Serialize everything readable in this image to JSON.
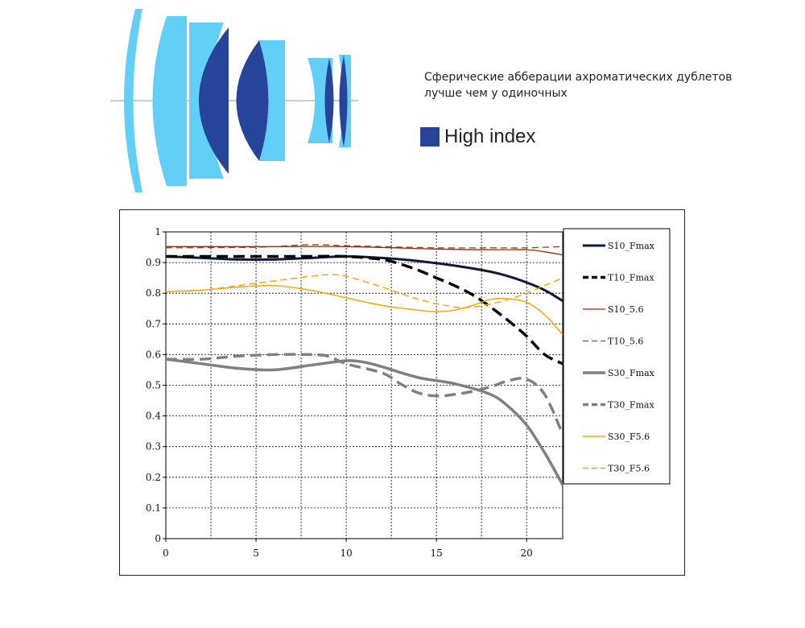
{
  "caption": {
    "line1": "Сферические абберации ахроматических дублетов",
    "line2": "лучше чем у одиночных"
  },
  "high_index_legend": {
    "label": "High index",
    "color": "#26449a"
  },
  "lens_colors": {
    "low_index": "#62d0f6",
    "high_index": "#26449a",
    "axis": "#a0b0c0"
  },
  "chart_data": {
    "type": "line",
    "xlim": [
      0,
      22
    ],
    "ylim": [
      0,
      1
    ],
    "xticks": [
      0,
      5,
      10,
      15,
      20
    ],
    "yticks": [
      0,
      0.1,
      0.2,
      0.3,
      0.4,
      0.5,
      0.6,
      0.7,
      0.8,
      0.9,
      1
    ],
    "x_gridlines": [
      2.5,
      5,
      7.5,
      10,
      12.5,
      15,
      17.5,
      20
    ],
    "y_gridlines": [
      0.1,
      0.2,
      0.3,
      0.4,
      0.5,
      0.6,
      0.7,
      0.8,
      0.9
    ],
    "grid": true,
    "legend_position": "right",
    "series": [
      {
        "name": "S10_Fmax",
        "color": "#0c1a3a",
        "width": 3,
        "dash": "",
        "x": [
          0,
          2,
          4,
          6,
          8,
          10,
          12,
          14,
          16,
          18,
          19,
          20,
          21,
          22
        ],
        "y": [
          0.92,
          0.915,
          0.91,
          0.91,
          0.915,
          0.92,
          0.915,
          0.905,
          0.89,
          0.87,
          0.855,
          0.835,
          0.81,
          0.775
        ]
      },
      {
        "name": "T10_Fmax",
        "color": "#000000",
        "width": 3.5,
        "dash": "14,7",
        "x": [
          0,
          2,
          4,
          6,
          8,
          10,
          12,
          13,
          14,
          15,
          16,
          17,
          18,
          19,
          20,
          21,
          22
        ],
        "y": [
          0.92,
          0.92,
          0.92,
          0.92,
          0.92,
          0.92,
          0.91,
          0.895,
          0.875,
          0.85,
          0.825,
          0.795,
          0.755,
          0.71,
          0.66,
          0.6,
          0.57
        ]
      },
      {
        "name": "S10_5.6",
        "color": "#a02510",
        "width": 1.3,
        "dash": "",
        "x": [
          0,
          5,
          10,
          15,
          18,
          20,
          21,
          22
        ],
        "y": [
          0.952,
          0.952,
          0.952,
          0.944,
          0.942,
          0.942,
          0.935,
          0.925
        ]
      },
      {
        "name": "T10_5.6",
        "color": "#8b4a1a",
        "width": 1.3,
        "dash": "8,5",
        "x": [
          0,
          5,
          8,
          10,
          12,
          15,
          18,
          20,
          22
        ],
        "y": [
          0.948,
          0.95,
          0.958,
          0.955,
          0.952,
          0.948,
          0.948,
          0.948,
          0.952
        ]
      },
      {
        "name": "S30_Fmax",
        "color": "#808080",
        "width": 3.5,
        "dash": "",
        "x": [
          0,
          2,
          4,
          6,
          8,
          10,
          11,
          12,
          14,
          16,
          18,
          19,
          20,
          21,
          22
        ],
        "y": [
          0.585,
          0.57,
          0.555,
          0.55,
          0.565,
          0.58,
          0.575,
          0.56,
          0.525,
          0.505,
          0.47,
          0.43,
          0.37,
          0.28,
          0.175
        ]
      },
      {
        "name": "T30_Fmax",
        "color": "#808080",
        "width": 3.5,
        "dash": "14,7",
        "x": [
          0,
          2,
          4,
          6,
          8,
          9,
          10,
          12,
          13,
          14,
          15,
          16,
          17,
          18,
          19,
          20,
          21,
          22
        ],
        "y": [
          0.585,
          0.585,
          0.595,
          0.6,
          0.6,
          0.595,
          0.57,
          0.54,
          0.505,
          0.475,
          0.465,
          0.47,
          0.48,
          0.495,
          0.515,
          0.52,
          0.47,
          0.34
        ]
      },
      {
        "name": "S30_F5.6",
        "color": "#f5a60a",
        "width": 1.5,
        "dash": "",
        "x": [
          0,
          2,
          4,
          6,
          8,
          10,
          12,
          14,
          15,
          16,
          17,
          18,
          19,
          20,
          21,
          22
        ],
        "y": [
          0.805,
          0.81,
          0.82,
          0.825,
          0.81,
          0.785,
          0.76,
          0.745,
          0.74,
          0.745,
          0.76,
          0.78,
          0.782,
          0.77,
          0.73,
          0.665
        ]
      },
      {
        "name": "T30_F5.6",
        "color": "#f5a60a",
        "width": 1.5,
        "dash": "8,5",
        "x": [
          0,
          2,
          4,
          6,
          8,
          9,
          10,
          12,
          14,
          16,
          17,
          18,
          19,
          20,
          21,
          22
        ],
        "y": [
          0.805,
          0.81,
          0.825,
          0.84,
          0.855,
          0.86,
          0.855,
          0.82,
          0.78,
          0.755,
          0.755,
          0.765,
          0.78,
          0.8,
          0.825,
          0.85
        ]
      }
    ]
  }
}
